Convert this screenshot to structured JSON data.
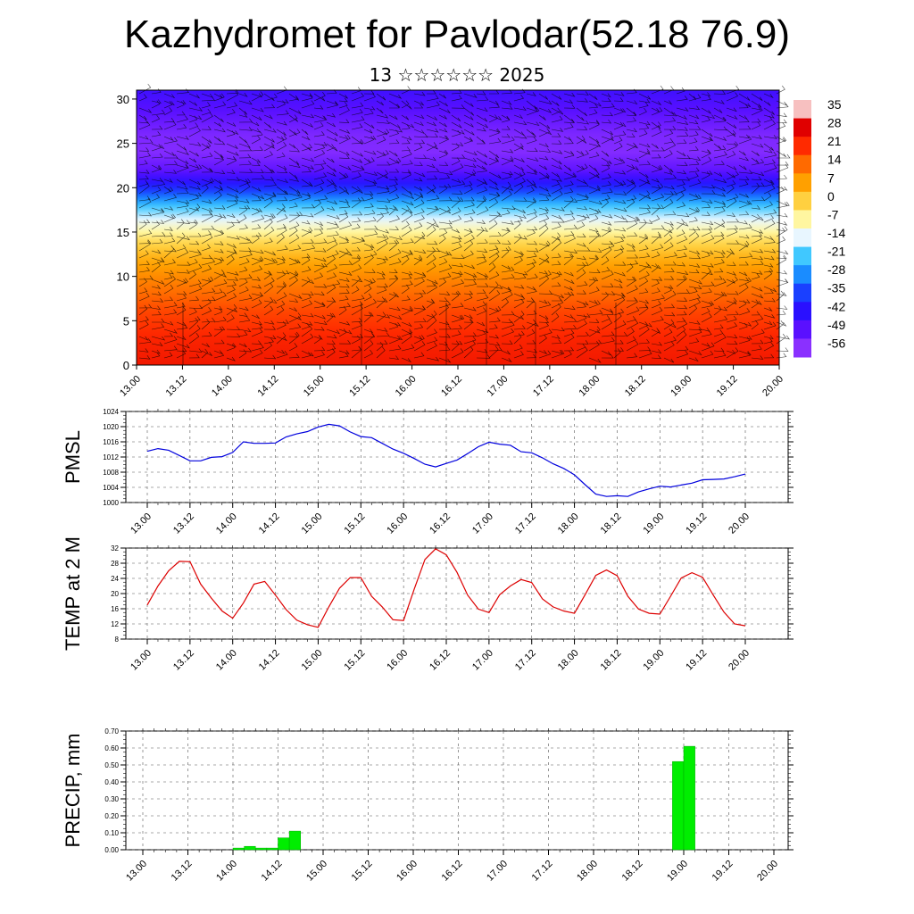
{
  "title": "Kazhydromet for Pavlodar(52.18 76.9)",
  "subtitle": "13 ☆☆☆☆☆☆ 2025",
  "colors": {
    "pressure_line": "#0000dd",
    "temperature_line": "#dd0000",
    "precip_bar": "#00ee00",
    "precip_bar_edge": "#00aa00",
    "wind_barb": "#000000"
  },
  "chart_data": [
    {
      "type": "heatmap",
      "name": "vertical temperature cross-section with wind barbs",
      "xlabel": "",
      "ylabel": "",
      "x_tick_labels": [
        "13.00",
        "13.12",
        "14.00",
        "14.12",
        "15.00",
        "15.12",
        "16.00",
        "16.12",
        "17.00",
        "17.12",
        "18.00",
        "18.12",
        "19.00",
        "19.12",
        "20.00"
      ],
      "y_tick_labels": [
        "0",
        "5",
        "10",
        "15",
        "20",
        "25",
        "30"
      ],
      "ylim": [
        0,
        31
      ],
      "colorbar_labels": [
        "35",
        "28",
        "21",
        "14",
        "7",
        "0",
        "-7",
        "-14",
        "-21",
        "-28",
        "-35",
        "-42",
        "-49",
        "-56"
      ],
      "colorbar_stops": [
        "#f7c0c0",
        "#e00000",
        "#ff2a00",
        "#ff6a00",
        "#ffa000",
        "#ffd040",
        "#fff6a0",
        "#e8f6ff",
        "#40c8ff",
        "#1a8cff",
        "#1a40ff",
        "#2a10ff",
        "#5a10ff",
        "#8a30ff"
      ],
      "temperature_profile_z": [
        0,
        3,
        6,
        9,
        12,
        14,
        16,
        18,
        20,
        22,
        24,
        26,
        28,
        31
      ],
      "temperature_profile_c": [
        24,
        22,
        18,
        12,
        5,
        -2,
        -12,
        -22,
        -38,
        -50,
        -55,
        -54,
        -50,
        -45
      ]
    },
    {
      "type": "line",
      "ylabel": "PMSL",
      "x_tick_labels": [
        "13.00",
        "13.12",
        "14.00",
        "14.12",
        "15.00",
        "15.12",
        "16.00",
        "16.12",
        "17.00",
        "17.12",
        "18.00",
        "18.12",
        "19.00",
        "19.12",
        "20.00"
      ],
      "y_tick_labels": [
        "1000",
        "1004",
        "1008",
        "1012",
        "1016",
        "1020",
        "1024"
      ],
      "ylim": [
        1000,
        1024
      ],
      "x_hours": [
        0,
        3,
        6,
        9,
        12,
        15,
        18,
        21,
        24,
        27,
        30,
        33,
        36,
        39,
        42,
        45,
        48,
        51,
        54,
        57,
        60,
        63,
        66,
        69,
        72,
        75,
        78,
        81,
        84,
        87,
        90,
        93,
        96,
        99,
        102,
        105,
        108,
        111,
        114,
        117,
        120,
        123,
        126,
        129,
        132,
        135,
        138,
        141,
        144,
        147,
        150,
        153,
        156,
        159,
        162,
        165,
        168
      ],
      "values": [
        1013.5,
        1014.2,
        1013.8,
        1012.4,
        1011.0,
        1011.0,
        1011.9,
        1012.1,
        1013.2,
        1016.0,
        1015.6,
        1015.6,
        1015.7,
        1017.3,
        1018.1,
        1018.7,
        1019.9,
        1020.6,
        1020.2,
        1018.6,
        1017.4,
        1017.1,
        1015.6,
        1014.1,
        1013.0,
        1011.6,
        1010.1,
        1009.4,
        1010.3,
        1011.2,
        1012.9,
        1014.7,
        1015.9,
        1015.4,
        1015.1,
        1013.4,
        1013.1,
        1011.8,
        1010.2,
        1009.0,
        1007.3,
        1004.7,
        1002.2,
        1001.6,
        1001.8,
        1001.6,
        1002.8,
        1003.6,
        1004.3,
        1004.1,
        1004.6,
        1005.1,
        1006.0,
        1006.1,
        1006.2,
        1006.8,
        1007.5
      ]
    },
    {
      "type": "line",
      "ylabel": "TEMP at 2 M",
      "x_tick_labels": [
        "13.00",
        "13.12",
        "14.00",
        "14.12",
        "15.00",
        "15.12",
        "16.00",
        "16.12",
        "17.00",
        "17.12",
        "18.00",
        "18.12",
        "19.00",
        "19.12",
        "20.00"
      ],
      "y_tick_labels": [
        "8",
        "12",
        "16",
        "20",
        "24",
        "28",
        "32"
      ],
      "ylim": [
        8,
        32
      ],
      "x_hours": [
        0,
        3,
        6,
        9,
        12,
        15,
        18,
        21,
        24,
        27,
        30,
        33,
        36,
        39,
        42,
        45,
        48,
        51,
        54,
        57,
        60,
        63,
        66,
        69,
        72,
        75,
        78,
        81,
        84,
        87,
        90,
        93,
        96,
        99,
        102,
        105,
        108,
        111,
        114,
        117,
        120,
        123,
        126,
        129,
        132,
        135,
        138,
        141,
        144,
        147,
        150,
        153,
        156,
        159,
        162,
        165,
        168
      ],
      "values": [
        17.0,
        22.0,
        26.0,
        28.5,
        28.4,
        22.5,
        18.8,
        15.4,
        13.5,
        17.5,
        22.5,
        23.2,
        19.6,
        15.8,
        13.0,
        11.8,
        11.1,
        16.5,
        21.4,
        24.2,
        24.2,
        19.3,
        16.5,
        13.1,
        12.9,
        21.2,
        29.0,
        31.8,
        30.2,
        25.6,
        19.6,
        15.9,
        15.0,
        19.7,
        22.0,
        23.7,
        22.9,
        18.6,
        16.5,
        15.4,
        14.8,
        19.7,
        24.8,
        26.2,
        24.7,
        19.3,
        15.9,
        14.8,
        14.6,
        19.3,
        24.1,
        25.5,
        24.3,
        19.6,
        15.1,
        12.0,
        11.5
      ]
    },
    {
      "type": "bar",
      "ylabel": "PRECIP, mm",
      "x_tick_labels": [
        "13.00",
        "13.12",
        "14.00",
        "14.12",
        "15.00",
        "15.12",
        "16.00",
        "16.12",
        "17.00",
        "17.12",
        "18.00",
        "18.12",
        "19.00",
        "19.12",
        "20.00"
      ],
      "y_tick_labels": [
        "0.00",
        "0.10",
        "0.20",
        "0.30",
        "0.40",
        "0.50",
        "0.60",
        "0.70"
      ],
      "ylim": [
        0,
        0.7
      ],
      "x_hours": [
        24,
        27,
        30,
        33,
        36,
        39,
        141,
        144
      ],
      "values": [
        0.01,
        0.02,
        0.01,
        0.01,
        0.07,
        0.11,
        0.52,
        0.61
      ]
    }
  ]
}
